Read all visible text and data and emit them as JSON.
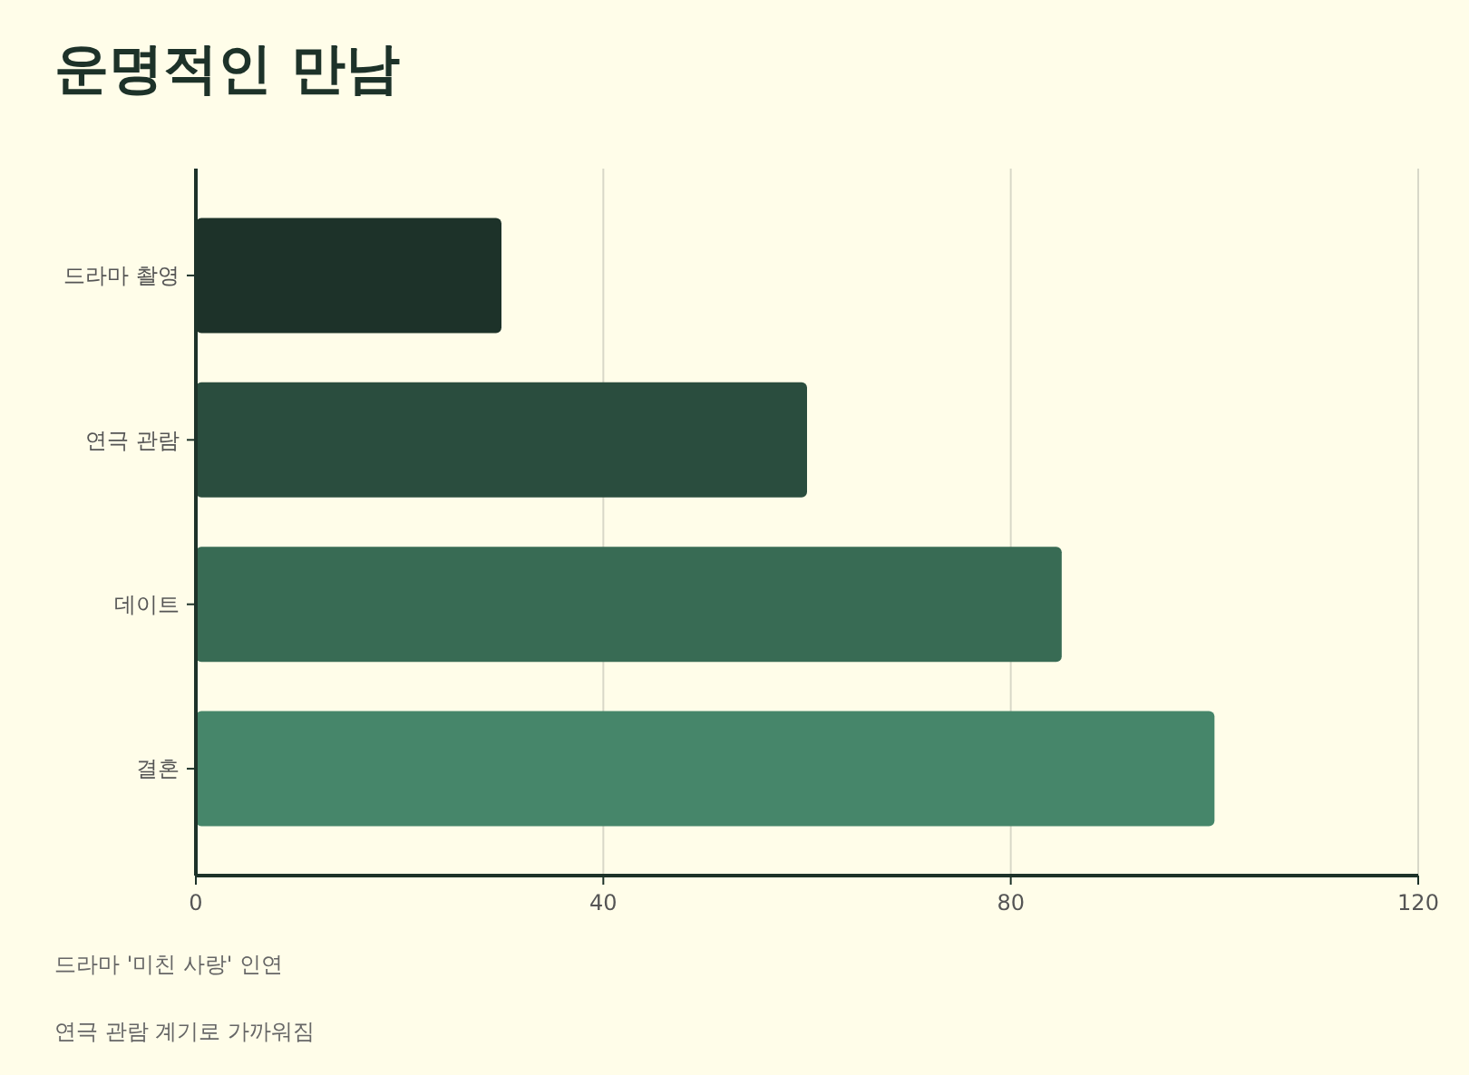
{
  "chart_data": {
    "type": "bar",
    "orientation": "horizontal",
    "title": "운명적인 만남",
    "categories": [
      "드라마 촬영",
      "연극 관람",
      "데이트",
      "결혼"
    ],
    "values": [
      30,
      60,
      85,
      100
    ],
    "colors": [
      "#1d3229",
      "#2a4d3e",
      "#386b54",
      "#46866a"
    ],
    "xlim": [
      0,
      120
    ],
    "xticks": [
      0,
      40,
      80,
      120
    ],
    "grid": "x",
    "annotations": [
      "드라마 '미친 사랑' 인연",
      "연극 관람 계기로 가까워짐"
    ]
  }
}
